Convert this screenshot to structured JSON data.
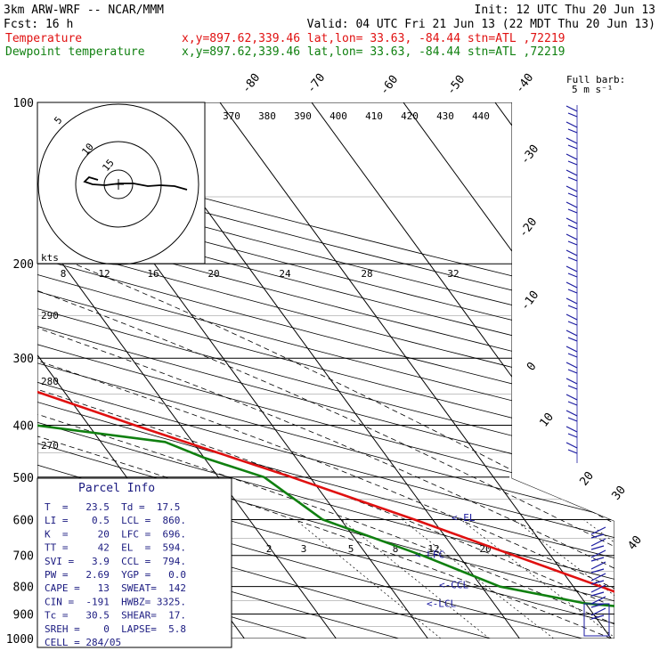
{
  "header": {
    "model": "3km ARW-WRF -- NCAR/MMM",
    "init": "Init: 12 UTC Thu 20 Jun 13",
    "fcst": "Fcst:   16 h",
    "valid": "Valid: 04 UTC Fri 21 Jun 13 (22 MDT Thu 20 Jun 13)",
    "temp_label": "Temperature",
    "temp_info": "x,y=897.62,339.46   lat,lon= 33.63, -84.44   stn=ATL ,72219",
    "dew_label": "Dewpoint temperature",
    "dew_info": "x,y=897.62,339.46   lat,lon= 33.63, -84.44   stn=ATL ,72219",
    "barb_title": "Full barb:",
    "barb_units": "5 m s⁻¹"
  },
  "colors": {
    "temperature": "#e01010",
    "dewpoint": "#108010",
    "grid": "#000000",
    "parcel_text": "#1a1a80",
    "barbs": "#1a1aa0"
  },
  "chart_data": {
    "type": "line",
    "title": "",
    "yaxis": "pressure (hPa), log scale, inverted",
    "xaxis": "temperature (°C), skewed",
    "pressure_labels": [
      "100",
      "200",
      "300",
      "400",
      "500",
      "600",
      "700",
      "800",
      "900",
      "1000"
    ],
    "temp_tick_labels": [
      "-80",
      "-70",
      "-60",
      "-50",
      "-40",
      "-30",
      "-20",
      "-10",
      "0",
      "10",
      "20",
      "30",
      "40"
    ],
    "theta_labels": [
      "370",
      "380",
      "390",
      "400",
      "410",
      "420",
      "430",
      "440"
    ],
    "theta_side_labels": [
      "290",
      "280",
      "270"
    ],
    "mixing_ratio_labels": [
      "2",
      "3",
      "5",
      "8",
      "12",
      "20"
    ],
    "series": [
      {
        "name": "Temperature",
        "color": "#e01010",
        "points": [
          [
            100,
            -70
          ],
          [
            120,
            -68
          ],
          [
            150,
            -66
          ],
          [
            180,
            -64
          ],
          [
            200,
            -60
          ],
          [
            250,
            -50
          ],
          [
            300,
            -41
          ],
          [
            400,
            -25
          ],
          [
            500,
            -12
          ],
          [
            600,
            -2
          ],
          [
            700,
            6
          ],
          [
            800,
            13
          ],
          [
            850,
            16
          ],
          [
            900,
            19
          ],
          [
            975,
            23
          ],
          [
            1000,
            24
          ]
        ]
      },
      {
        "name": "Dewpoint temperature",
        "color": "#108010",
        "points": [
          [
            100,
            -80
          ],
          [
            130,
            -76
          ],
          [
            140,
            -72
          ],
          [
            155,
            -74
          ],
          [
            200,
            -59
          ],
          [
            250,
            -56
          ],
          [
            280,
            -53
          ],
          [
            330,
            -48
          ],
          [
            350,
            -66
          ],
          [
            380,
            -45
          ],
          [
            430,
            -23
          ],
          [
            460,
            -20
          ],
          [
            500,
            -15
          ],
          [
            600,
            -12
          ],
          [
            700,
            -4
          ],
          [
            800,
            2
          ],
          [
            860,
            10
          ],
          [
            880,
            16
          ],
          [
            900,
            18
          ],
          [
            950,
            17
          ],
          [
            975,
            17
          ]
        ]
      }
    ],
    "parcel_labels": [
      "<-EL",
      "<-LFC",
      "<-CCL",
      "<-LCL"
    ],
    "hodograph": {
      "speed_unit": "kts",
      "ring_labels": [
        "8",
        "12",
        "16",
        "20",
        "24",
        "28",
        "32"
      ],
      "circle_labels": [
        "5",
        "10",
        "15"
      ]
    }
  },
  "parcel_info": {
    "title": "Parcel Info",
    "rows": [
      "T  =   23.5  Td =  17.5",
      "LI =    0.5  LCL =  860.",
      "K  =     20  LFC =  696.",
      "TT =     42  EL  =  594.",
      "SVI =   3.9  CCL =  794.",
      "PW =   2.69  YGP =   0.0",
      "CAPE =   13  SWEAT=  142",
      "CIN =  -191  HWBZ= 3325.",
      "Tc =   30.5  SHEAR=  17.",
      "SREH =    0  LAPSE=  5.8",
      "CELL = 284/05"
    ]
  }
}
